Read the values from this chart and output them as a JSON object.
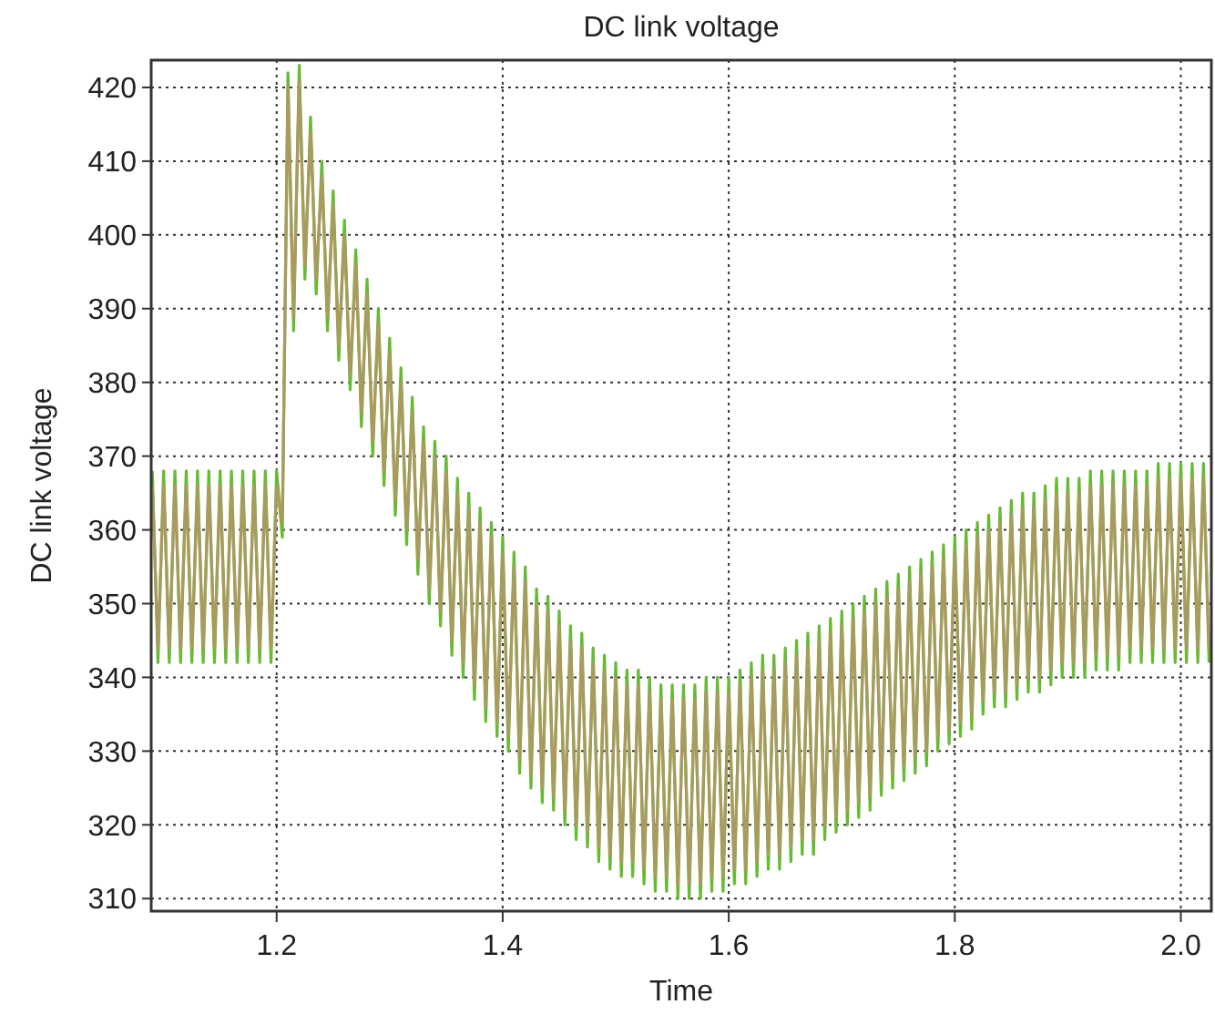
{
  "chart_data": {
    "type": "line",
    "title": "DC link voltage",
    "xlabel": "Time",
    "ylabel": "DC link voltage",
    "xlim": [
      1.089,
      2.027
    ],
    "xticks": [
      1.2,
      1.4,
      1.6,
      1.8,
      {
        "value": 2,
        "label": "2.0"
      }
    ],
    "ylim": [
      308.3,
      423.7
    ],
    "yticks": [
      310,
      320,
      330,
      340,
      350,
      360,
      370,
      380,
      390,
      400,
      410,
      420
    ],
    "grid": true,
    "line_style": "solid",
    "marker": "none",
    "x": [
      1.09,
      1.095,
      1.1,
      1.105,
      1.11,
      1.115,
      1.12,
      1.125,
      1.13,
      1.135,
      1.14,
      1.145,
      1.15,
      1.155,
      1.16,
      1.165,
      1.17,
      1.175,
      1.18,
      1.185,
      1.19,
      1.195,
      1.2,
      1.205,
      1.21,
      1.215,
      1.22,
      1.225,
      1.23,
      1.235,
      1.24,
      1.245,
      1.25,
      1.255,
      1.26,
      1.265,
      1.27,
      1.275,
      1.28,
      1.285,
      1.29,
      1.295,
      1.3,
      1.305,
      1.31,
      1.315,
      1.32,
      1.325,
      1.33,
      1.335,
      1.34,
      1.345,
      1.35,
      1.355,
      1.36,
      1.365,
      1.37,
      1.375,
      1.38,
      1.385,
      1.39,
      1.395,
      1.4,
      1.405,
      1.41,
      1.415,
      1.42,
      1.425,
      1.43,
      1.435,
      1.44,
      1.445,
      1.45,
      1.455,
      1.46,
      1.465,
      1.47,
      1.475,
      1.48,
      1.485,
      1.49,
      1.495,
      1.5,
      1.505,
      1.51,
      1.515,
      1.52,
      1.525,
      1.53,
      1.535,
      1.54,
      1.545,
      1.55,
      1.555,
      1.56,
      1.565,
      1.57,
      1.575,
      1.58,
      1.585,
      1.59,
      1.595,
      1.6,
      1.605,
      1.61,
      1.615,
      1.62,
      1.625,
      1.63,
      1.635,
      1.64,
      1.645,
      1.65,
      1.655,
      1.66,
      1.665,
      1.67,
      1.675,
      1.68,
      1.685,
      1.69,
      1.695,
      1.7,
      1.705,
      1.71,
      1.715,
      1.72,
      1.725,
      1.73,
      1.735,
      1.74,
      1.745,
      1.75,
      1.755,
      1.76,
      1.765,
      1.77,
      1.775,
      1.78,
      1.785,
      1.79,
      1.795,
      1.8,
      1.805,
      1.81,
      1.815,
      1.82,
      1.825,
      1.83,
      1.835,
      1.84,
      1.845,
      1.85,
      1.855,
      1.86,
      1.865,
      1.87,
      1.875,
      1.88,
      1.885,
      1.89,
      1.895,
      1.9,
      1.905,
      1.91,
      1.915,
      1.92,
      1.925,
      1.93,
      1.935,
      1.94,
      1.945,
      1.95,
      1.955,
      1.96,
      1.965,
      1.97,
      1.975,
      1.98,
      1.985,
      1.99,
      1.995,
      2.0,
      2.005,
      2.01,
      2.015,
      2.02,
      2.025
    ],
    "series": [
      {
        "color": "#66bb33",
        "values": [
          368,
          342,
          368,
          342,
          368,
          342,
          368,
          342,
          368,
          342,
          368,
          342,
          368,
          342,
          368,
          342,
          368,
          342,
          368,
          342,
          368,
          342,
          368,
          359,
          422,
          387,
          423,
          394,
          416,
          392,
          410,
          387,
          406,
          383,
          402,
          379,
          398,
          374,
          394,
          370,
          390,
          366,
          386,
          362,
          382,
          358,
          378,
          354,
          374,
          350,
          372,
          347,
          370,
          343,
          367,
          340,
          365,
          337,
          363,
          334,
          361,
          332,
          359,
          330,
          357,
          327,
          355,
          325,
          352,
          323,
          351,
          322,
          349,
          320,
          347,
          318,
          346,
          317,
          344,
          315,
          343,
          314,
          342,
          313,
          341,
          313,
          341,
          312,
          340,
          311,
          339,
          311,
          339,
          310,
          339,
          310,
          339,
          310,
          340,
          311,
          340,
          311,
          340,
          312,
          341,
          312,
          342,
          313,
          343,
          314,
          343,
          314,
          344,
          315,
          345,
          316,
          346,
          316,
          347,
          318,
          348,
          319,
          349,
          320,
          350,
          321,
          351,
          322,
          352,
          324,
          353,
          325,
          354,
          326,
          355,
          327,
          356,
          328,
          357,
          330,
          358,
          331,
          359,
          332,
          360,
          333,
          361,
          335,
          362,
          336,
          363,
          336,
          364,
          337,
          365,
          338,
          365,
          338,
          366,
          339,
          367,
          340,
          367,
          340,
          367,
          340,
          368,
          341,
          368,
          341,
          368,
          341,
          368,
          342,
          368,
          342,
          368,
          342,
          369,
          342,
          369,
          342,
          369,
          342,
          369,
          342,
          369,
          342
        ]
      },
      {
        "color": "#aa9a5f",
        "values": [
          366,
          344,
          366,
          344,
          366,
          344,
          366,
          344,
          366,
          344,
          366,
          344,
          366,
          344,
          366,
          344,
          366,
          344,
          366,
          344,
          366,
          344,
          366,
          361,
          420,
          389,
          421,
          396,
          414,
          394,
          408,
          389,
          404,
          385,
          400,
          381,
          396,
          376,
          392,
          372,
          388,
          368,
          384,
          364,
          380,
          360,
          376,
          356,
          372,
          352,
          370,
          349,
          368,
          345,
          365,
          342,
          363,
          339,
          361,
          336,
          359,
          334,
          357,
          332,
          355,
          329,
          353,
          327,
          350,
          325,
          349,
          324,
          347,
          322,
          345,
          320,
          344,
          319,
          342,
          317,
          341,
          316,
          340,
          315,
          339,
          315,
          339,
          314,
          338,
          313,
          337,
          313,
          337,
          312,
          337,
          312,
          337,
          312,
          338,
          313,
          338,
          313,
          338,
          314,
          339,
          314,
          340,
          315,
          341,
          316,
          341,
          316,
          342,
          317,
          343,
          318,
          344,
          318,
          345,
          320,
          346,
          321,
          347,
          322,
          348,
          323,
          349,
          324,
          350,
          326,
          351,
          327,
          352,
          328,
          353,
          329,
          354,
          330,
          355,
          332,
          356,
          333,
          357,
          334,
          358,
          335,
          359,
          337,
          360,
          338,
          361,
          338,
          362,
          339,
          363,
          340,
          363,
          340,
          364,
          341,
          365,
          342,
          365,
          342,
          365,
          342,
          366,
          343,
          366,
          343,
          366,
          343,
          366,
          344,
          366,
          344,
          366,
          344,
          367,
          344,
          367,
          344,
          367,
          344,
          367,
          344,
          367,
          344
        ]
      }
    ]
  }
}
